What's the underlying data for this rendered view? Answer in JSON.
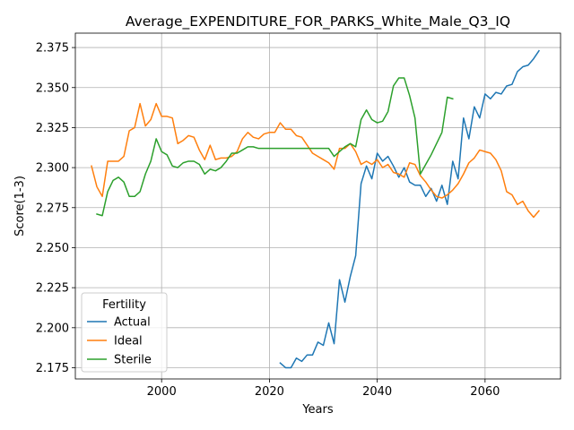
{
  "chart_data": {
    "type": "line",
    "title": "Average_EXPENDITURE_FOR_PARKS_White_Male_Q3_IQ",
    "xlabel": "Years",
    "ylabel": "Score(1-3)",
    "xlim": [
      1984,
      2074
    ],
    "ylim": [
      2.168,
      2.384
    ],
    "xticks": [
      2000,
      2020,
      2040,
      2060
    ],
    "yticks": [
      2.175,
      2.2,
      2.225,
      2.25,
      2.275,
      2.3,
      2.325,
      2.35,
      2.375
    ],
    "ytick_labels": [
      "2.175",
      "2.200",
      "2.225",
      "2.250",
      "2.275",
      "2.300",
      "2.325",
      "2.350",
      "2.375"
    ],
    "xtick_labels": [
      "2000",
      "2020",
      "2040",
      "2060"
    ],
    "grid": true,
    "legend": {
      "title": "Fertility",
      "placement": "lower-left"
    },
    "series": [
      {
        "name": "Actual",
        "color": "#1f77b4",
        "points": [
          [
            2022,
            2.178
          ],
          [
            2023,
            2.175
          ],
          [
            2024,
            2.175
          ],
          [
            2025,
            2.181
          ],
          [
            2026,
            2.179
          ],
          [
            2027,
            2.183
          ],
          [
            2028,
            2.183
          ],
          [
            2029,
            2.191
          ],
          [
            2030,
            2.189
          ],
          [
            2031,
            2.203
          ],
          [
            2032,
            2.19
          ],
          [
            2033,
            2.23
          ],
          [
            2034,
            2.216
          ],
          [
            2035,
            2.232
          ],
          [
            2036,
            2.245
          ],
          [
            2037,
            2.29
          ],
          [
            2038,
            2.301
          ],
          [
            2039,
            2.293
          ],
          [
            2040,
            2.309
          ],
          [
            2041,
            2.304
          ],
          [
            2042,
            2.307
          ],
          [
            2043,
            2.301
          ],
          [
            2044,
            2.294
          ],
          [
            2045,
            2.3
          ],
          [
            2046,
            2.291
          ],
          [
            2047,
            2.289
          ],
          [
            2048,
            2.289
          ],
          [
            2049,
            2.282
          ],
          [
            2050,
            2.287
          ],
          [
            2051,
            2.279
          ],
          [
            2052,
            2.289
          ],
          [
            2053,
            2.277
          ],
          [
            2054,
            2.304
          ],
          [
            2055,
            2.293
          ],
          [
            2056,
            2.331
          ],
          [
            2057,
            2.318
          ],
          [
            2058,
            2.338
          ],
          [
            2059,
            2.331
          ],
          [
            2060,
            2.346
          ],
          [
            2061,
            2.343
          ],
          [
            2062,
            2.347
          ],
          [
            2063,
            2.346
          ],
          [
            2064,
            2.351
          ],
          [
            2065,
            2.352
          ],
          [
            2066,
            2.36
          ],
          [
            2067,
            2.363
          ],
          [
            2068,
            2.364
          ],
          [
            2069,
            2.368
          ],
          [
            2070,
            2.373
          ]
        ]
      },
      {
        "name": "Ideal",
        "color": "#ff7f0e",
        "points": [
          [
            1987,
            2.301
          ],
          [
            1988,
            2.288
          ],
          [
            1989,
            2.282
          ],
          [
            1990,
            2.304
          ],
          [
            1991,
            2.304
          ],
          [
            1992,
            2.304
          ],
          [
            1993,
            2.307
          ],
          [
            1994,
            2.323
          ],
          [
            1995,
            2.325
          ],
          [
            1996,
            2.34
          ],
          [
            1997,
            2.326
          ],
          [
            1998,
            2.33
          ],
          [
            1999,
            2.34
          ],
          [
            2000,
            2.332
          ],
          [
            2001,
            2.332
          ],
          [
            2002,
            2.331
          ],
          [
            2003,
            2.315
          ],
          [
            2004,
            2.317
          ],
          [
            2005,
            2.32
          ],
          [
            2006,
            2.319
          ],
          [
            2007,
            2.311
          ],
          [
            2008,
            2.305
          ],
          [
            2009,
            2.314
          ],
          [
            2010,
            2.305
          ],
          [
            2011,
            2.306
          ],
          [
            2012,
            2.306
          ],
          [
            2013,
            2.307
          ],
          [
            2014,
            2.31
          ],
          [
            2015,
            2.318
          ],
          [
            2016,
            2.322
          ],
          [
            2017,
            2.319
          ],
          [
            2018,
            2.318
          ],
          [
            2019,
            2.321
          ],
          [
            2020,
            2.322
          ],
          [
            2021,
            2.322
          ],
          [
            2022,
            2.328
          ],
          [
            2023,
            2.324
          ],
          [
            2024,
            2.324
          ],
          [
            2025,
            2.32
          ],
          [
            2026,
            2.319
          ],
          [
            2027,
            2.314
          ],
          [
            2028,
            2.309
          ],
          [
            2029,
            2.307
          ],
          [
            2030,
            2.305
          ],
          [
            2031,
            2.303
          ],
          [
            2032,
            2.299
          ],
          [
            2033,
            2.312
          ],
          [
            2034,
            2.312
          ],
          [
            2035,
            2.315
          ],
          [
            2036,
            2.31
          ],
          [
            2037,
            2.302
          ],
          [
            2038,
            2.304
          ],
          [
            2039,
            2.302
          ],
          [
            2040,
            2.305
          ],
          [
            2041,
            2.3
          ],
          [
            2042,
            2.302
          ],
          [
            2043,
            2.297
          ],
          [
            2044,
            2.296
          ],
          [
            2045,
            2.294
          ],
          [
            2046,
            2.303
          ],
          [
            2047,
            2.302
          ],
          [
            2048,
            2.295
          ],
          [
            2049,
            2.291
          ],
          [
            2050,
            2.286
          ],
          [
            2051,
            2.282
          ],
          [
            2052,
            2.281
          ],
          [
            2053,
            2.283
          ],
          [
            2054,
            2.286
          ],
          [
            2055,
            2.29
          ],
          [
            2056,
            2.296
          ],
          [
            2057,
            2.303
          ],
          [
            2058,
            2.306
          ],
          [
            2059,
            2.311
          ],
          [
            2060,
            2.31
          ],
          [
            2061,
            2.309
          ],
          [
            2062,
            2.305
          ],
          [
            2063,
            2.298
          ],
          [
            2064,
            2.285
          ],
          [
            2065,
            2.283
          ],
          [
            2066,
            2.277
          ],
          [
            2067,
            2.279
          ],
          [
            2068,
            2.273
          ],
          [
            2069,
            2.269
          ],
          [
            2070,
            2.273
          ]
        ]
      },
      {
        "name": "Sterile",
        "color": "#2ca02c",
        "points": [
          [
            1988,
            2.271
          ],
          [
            1989,
            2.27
          ],
          [
            1990,
            2.285
          ],
          [
            1991,
            2.292
          ],
          [
            1992,
            2.294
          ],
          [
            1993,
            2.291
          ],
          [
            1994,
            2.282
          ],
          [
            1995,
            2.282
          ],
          [
            1996,
            2.285
          ],
          [
            1997,
            2.296
          ],
          [
            1998,
            2.304
          ],
          [
            1999,
            2.318
          ],
          [
            2000,
            2.31
          ],
          [
            2001,
            2.308
          ],
          [
            2002,
            2.301
          ],
          [
            2003,
            2.3
          ],
          [
            2004,
            2.303
          ],
          [
            2005,
            2.304
          ],
          [
            2006,
            2.304
          ],
          [
            2007,
            2.302
          ],
          [
            2008,
            2.296
          ],
          [
            2009,
            2.299
          ],
          [
            2010,
            2.298
          ],
          [
            2011,
            2.3
          ],
          [
            2012,
            2.304
          ],
          [
            2013,
            2.309
          ],
          [
            2014,
            2.309
          ],
          [
            2015,
            2.311
          ],
          [
            2016,
            2.313
          ],
          [
            2017,
            2.313
          ],
          [
            2018,
            2.312
          ],
          [
            2019,
            2.312
          ],
          [
            2020,
            2.312
          ],
          [
            2021,
            2.312
          ],
          [
            2022,
            2.312
          ],
          [
            2023,
            2.312
          ],
          [
            2024,
            2.312
          ],
          [
            2025,
            2.312
          ],
          [
            2026,
            2.312
          ],
          [
            2027,
            2.312
          ],
          [
            2028,
            2.312
          ],
          [
            2029,
            2.312
          ],
          [
            2030,
            2.312
          ],
          [
            2031,
            2.312
          ],
          [
            2032,
            2.307
          ],
          [
            2033,
            2.31
          ],
          [
            2034,
            2.313
          ],
          [
            2035,
            2.315
          ],
          [
            2036,
            2.313
          ],
          [
            2037,
            2.33
          ],
          [
            2038,
            2.336
          ],
          [
            2039,
            2.33
          ],
          [
            2040,
            2.328
          ],
          [
            2041,
            2.329
          ],
          [
            2042,
            2.335
          ],
          [
            2043,
            2.351
          ],
          [
            2044,
            2.356
          ],
          [
            2045,
            2.356
          ],
          [
            2046,
            2.345
          ],
          [
            2047,
            2.331
          ],
          [
            2048,
            2.296
          ],
          [
            2049,
            2.302
          ],
          [
            2050,
            2.308
          ],
          [
            2051,
            2.315
          ],
          [
            2052,
            2.322
          ],
          [
            2053,
            2.344
          ],
          [
            2054,
            2.343
          ]
        ]
      }
    ]
  }
}
